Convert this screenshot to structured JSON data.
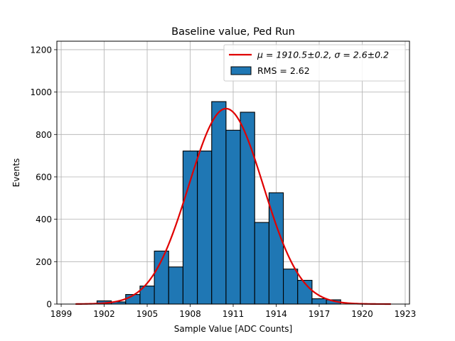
{
  "chart_data": {
    "type": "bar",
    "title": "Baseline value, Ped Run",
    "xlabel": "Sample Value [ADC Counts]",
    "ylabel": "Events",
    "xlim": [
      1898.7,
      1923.3
    ],
    "ylim": [
      0,
      1240
    ],
    "x_ticks": [
      1899,
      1902,
      1905,
      1908,
      1911,
      1914,
      1917,
      1920,
      1923
    ],
    "y_ticks": [
      0,
      200,
      400,
      600,
      800,
      1000,
      1200
    ],
    "grid": true,
    "legend_position": "top-right",
    "histogram": {
      "name": "RMS = 2.62",
      "color": "#1f77b4",
      "bins": [
        {
          "start": 1901.5,
          "end": 1902.5,
          "count": 15
        },
        {
          "start": 1902.5,
          "end": 1903.5,
          "count": 10
        },
        {
          "start": 1903.5,
          "end": 1904.5,
          "count": 45
        },
        {
          "start": 1904.5,
          "end": 1905.5,
          "count": 85
        },
        {
          "start": 1905.5,
          "end": 1906.5,
          "count": 250
        },
        {
          "start": 1906.5,
          "end": 1907.5,
          "count": 175
        },
        {
          "start": 1907.5,
          "end": 1908.5,
          "count": 722
        },
        {
          "start": 1908.5,
          "end": 1909.5,
          "count": 722
        },
        {
          "start": 1909.5,
          "end": 1910.5,
          "count": 955
        },
        {
          "start": 1910.5,
          "end": 1911.5,
          "count": 820
        },
        {
          "start": 1911.5,
          "end": 1912.5,
          "count": 905
        },
        {
          "start": 1912.5,
          "end": 1913.5,
          "count": 385
        },
        {
          "start": 1913.5,
          "end": 1914.5,
          "count": 525
        },
        {
          "start": 1914.5,
          "end": 1915.5,
          "count": 165
        },
        {
          "start": 1915.5,
          "end": 1916.5,
          "count": 112
        },
        {
          "start": 1916.5,
          "end": 1917.5,
          "count": 25
        },
        {
          "start": 1917.5,
          "end": 1918.5,
          "count": 20
        }
      ]
    },
    "fit": {
      "type": "gaussian",
      "color": "#e00000",
      "mu": 1910.5,
      "sigma": 2.6,
      "amplitude": 922,
      "x_range": [
        1900,
        1922
      ],
      "legend_mu_label": "μ = 1910.5±0.2, ",
      "legend_sigma_label": "σ = 2.6±0.2"
    }
  }
}
